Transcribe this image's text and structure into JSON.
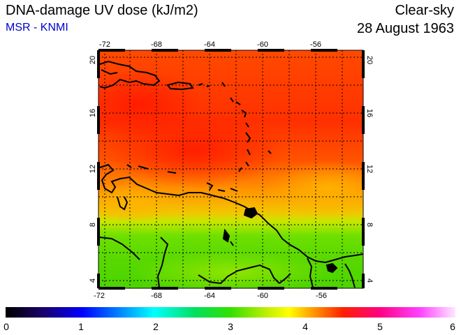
{
  "header": {
    "title": "DNA-damage UV dose (kJ/m2)",
    "subtitle": "MSR - KNMI",
    "condition": "Clear-sky",
    "date": "28 August 1963"
  },
  "map": {
    "lon_range": [
      -73,
      -53
    ],
    "lat_range": [
      3.5,
      20.5
    ],
    "lon_ticks": [
      "-72",
      "-68",
      "-64",
      "-60",
      "-56"
    ],
    "lat_ticks": [
      "4",
      "8",
      "12",
      "16",
      "20"
    ]
  },
  "colorbar": {
    "range": [
      0,
      6
    ],
    "labels": [
      "0",
      "1",
      "2",
      "3",
      "4",
      "5",
      "6"
    ]
  }
}
